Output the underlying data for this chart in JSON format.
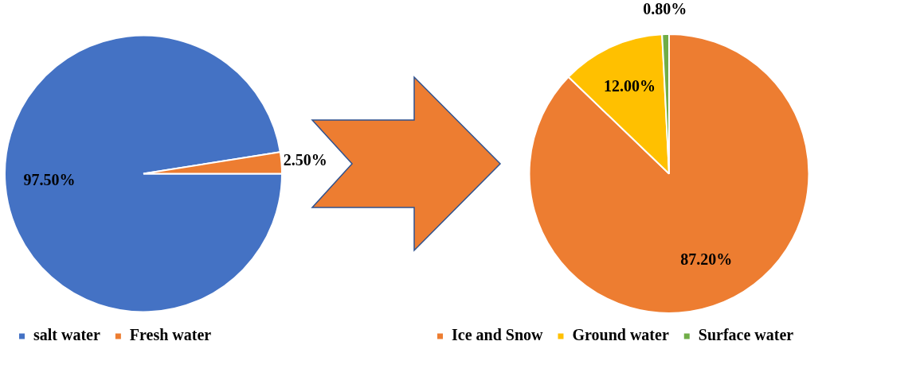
{
  "chart_data": [
    {
      "type": "pie",
      "categories": [
        "salt water",
        "Fresh water"
      ],
      "values": [
        97.5,
        2.5
      ],
      "colors": [
        "#4472c4",
        "#ed7d31"
      ],
      "value_labels": [
        "97.50%",
        "2.50%"
      ],
      "legend": "bottom left"
    },
    {
      "type": "pie",
      "categories": [
        "Ice and Snow",
        "Ground water",
        "Surface water"
      ],
      "values": [
        87.2,
        12.0,
        0.8
      ],
      "colors": [
        "#ed7d31",
        "#ffc000",
        "#70ad47"
      ],
      "value_labels": [
        "87.20%",
        "12.00%",
        "0.80%"
      ],
      "legend": "bottom left"
    }
  ]
}
